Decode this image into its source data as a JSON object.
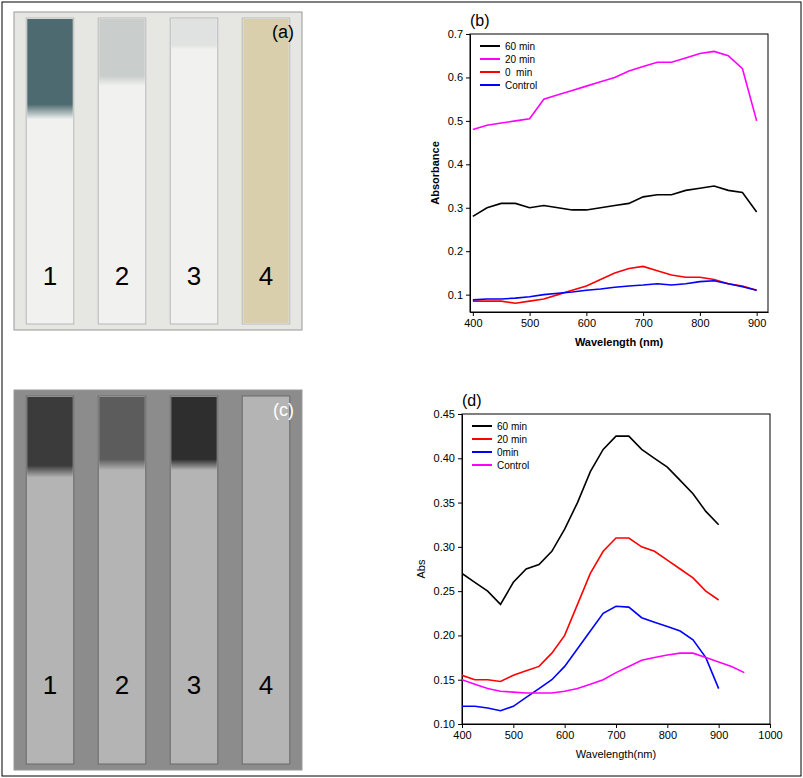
{
  "chart_data": [
    {
      "type": "line",
      "label": "(b)",
      "xlabel": "Wavelength (nm)",
      "ylabel": "Absorbance",
      "x": [
        400,
        425,
        450,
        475,
        500,
        525,
        550,
        575,
        600,
        625,
        650,
        675,
        700,
        725,
        750,
        775,
        800,
        825,
        850,
        875,
        900
      ],
      "series": [
        {
          "name": "60 min",
          "color": "#000000",
          "values": [
            0.28,
            0.3,
            0.31,
            0.31,
            0.3,
            0.305,
            0.3,
            0.295,
            0.295,
            0.3,
            0.305,
            0.31,
            0.325,
            0.33,
            0.33,
            0.34,
            0.345,
            0.35,
            0.34,
            0.335,
            0.29
          ]
        },
        {
          "name": "20 min",
          "color": "#ff00ff",
          "values": [
            0.48,
            0.49,
            0.495,
            0.5,
            0.505,
            0.55,
            0.56,
            0.57,
            0.58,
            0.59,
            0.6,
            0.615,
            0.625,
            0.635,
            0.635,
            0.645,
            0.655,
            0.66,
            0.65,
            0.62,
            0.5
          ]
        },
        {
          "name": "0  min",
          "color": "#ff0000",
          "values": [
            0.085,
            0.085,
            0.085,
            0.08,
            0.085,
            0.09,
            0.1,
            0.11,
            0.12,
            0.135,
            0.15,
            0.16,
            0.165,
            0.155,
            0.145,
            0.14,
            0.14,
            0.135,
            0.125,
            0.12,
            0.11
          ]
        },
        {
          "name": "Control",
          "color": "#0000ff",
          "values": [
            0.088,
            0.09,
            0.09,
            0.092,
            0.095,
            0.1,
            0.103,
            0.106,
            0.11,
            0.113,
            0.117,
            0.12,
            0.122,
            0.125,
            0.122,
            0.125,
            0.13,
            0.132,
            0.125,
            0.118,
            0.11
          ]
        }
      ],
      "xlim": [
        395,
        920
      ],
      "xticks": [
        400,
        500,
        600,
        700,
        800,
        900
      ],
      "ylim": [
        0.06,
        0.7
      ],
      "yticks": [
        0.1,
        0.2,
        0.3,
        0.4,
        0.5,
        0.6,
        0.7
      ],
      "legend": "upper left",
      "grid": false
    },
    {
      "type": "line",
      "label": "(d)",
      "xlabel": "Wavelength(nm)",
      "ylabel": "Abs",
      "x": [
        400,
        425,
        450,
        475,
        500,
        525,
        550,
        575,
        600,
        625,
        650,
        675,
        700,
        725,
        750,
        775,
        800,
        825,
        850,
        875,
        900,
        925,
        950
      ],
      "series": [
        {
          "name": "60 min",
          "color": "#000000",
          "values": [
            0.27,
            0.26,
            0.25,
            0.235,
            0.26,
            0.275,
            0.28,
            0.295,
            0.32,
            0.35,
            0.385,
            0.41,
            0.425,
            0.425,
            0.41,
            0.4,
            0.39,
            0.375,
            0.36,
            0.34,
            0.325,
            null,
            null
          ]
        },
        {
          "name": "20 min",
          "color": "#ff0000",
          "values": [
            0.155,
            0.15,
            0.15,
            0.148,
            0.155,
            0.16,
            0.165,
            0.18,
            0.2,
            0.235,
            0.27,
            0.295,
            0.31,
            0.31,
            0.3,
            0.295,
            0.285,
            0.275,
            0.265,
            0.25,
            0.24,
            null,
            null
          ]
        },
        {
          "name": "0min",
          "color": "#0000ff",
          "values": [
            0.12,
            0.12,
            0.118,
            0.115,
            0.12,
            0.13,
            0.14,
            0.15,
            0.165,
            0.185,
            0.205,
            0.225,
            0.233,
            0.232,
            0.22,
            0.215,
            0.21,
            0.205,
            0.195,
            0.175,
            0.14,
            null,
            null
          ]
        },
        {
          "name": "Control",
          "color": "#ff00ff",
          "values": [
            0.15,
            0.145,
            0.14,
            0.137,
            0.136,
            0.135,
            0.135,
            0.135,
            0.137,
            0.14,
            0.145,
            0.15,
            0.158,
            0.165,
            0.172,
            0.175,
            0.178,
            0.18,
            0.18,
            0.175,
            0.17,
            0.165,
            0.158
          ]
        }
      ],
      "xlim": [
        400,
        1000
      ],
      "xticks": [
        400,
        500,
        600,
        700,
        800,
        900,
        1000
      ],
      "ylim": [
        0.1,
        0.45
      ],
      "yticks": [
        {
          "value": 0.1,
          "label": "0.10"
        },
        {
          "value": 0.15,
          "label": "0.15"
        },
        {
          "value": 0.2,
          "label": "0.20"
        },
        {
          "value": 0.25,
          "label": "0.25"
        },
        {
          "value": 0.3,
          "label": "0.30"
        },
        {
          "value": 0.35,
          "label": "0.35"
        },
        {
          "value": 0.4,
          "label": "0.40"
        },
        {
          "value": 0.45,
          "label": "0.45"
        }
      ],
      "legend": "upper left",
      "grid": false
    }
  ],
  "photos": [
    {
      "label": "(a)",
      "slides": [
        "1",
        "2",
        "3",
        "4"
      ]
    },
    {
      "label": "(c)",
      "slides": [
        "1",
        "2",
        "3",
        "4"
      ]
    }
  ]
}
